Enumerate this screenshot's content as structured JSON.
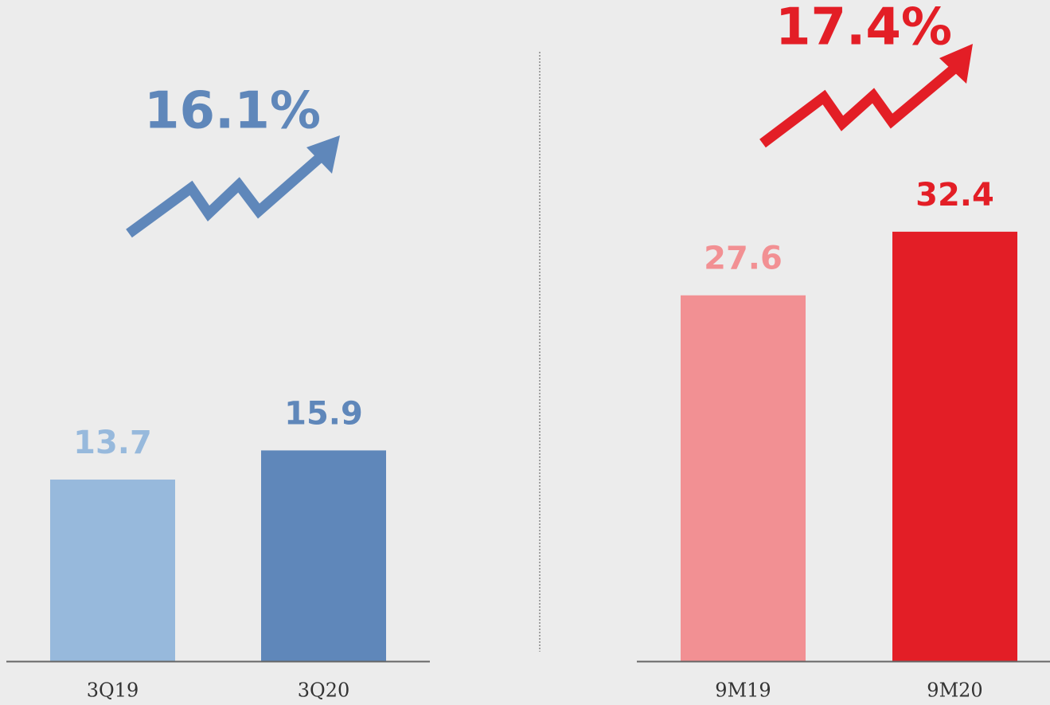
{
  "chart_data": [
    {
      "type": "bar",
      "categories": [
        "3Q19",
        "3Q20"
      ],
      "values": [
        13.7,
        15.9
      ],
      "colors": [
        "#97b9dc",
        "#5f87ba"
      ],
      "annotation": "16.1%",
      "annotation_color": "#5f87ba",
      "ylim": [
        0,
        50
      ]
    },
    {
      "type": "bar",
      "categories": [
        "9M19",
        "9M20"
      ],
      "values": [
        27.6,
        32.4
      ],
      "colors": [
        "#f29093",
        "#e31e26"
      ],
      "annotation": "17.4%",
      "annotation_color": "#e31e26",
      "ylim": [
        0,
        50
      ]
    }
  ]
}
